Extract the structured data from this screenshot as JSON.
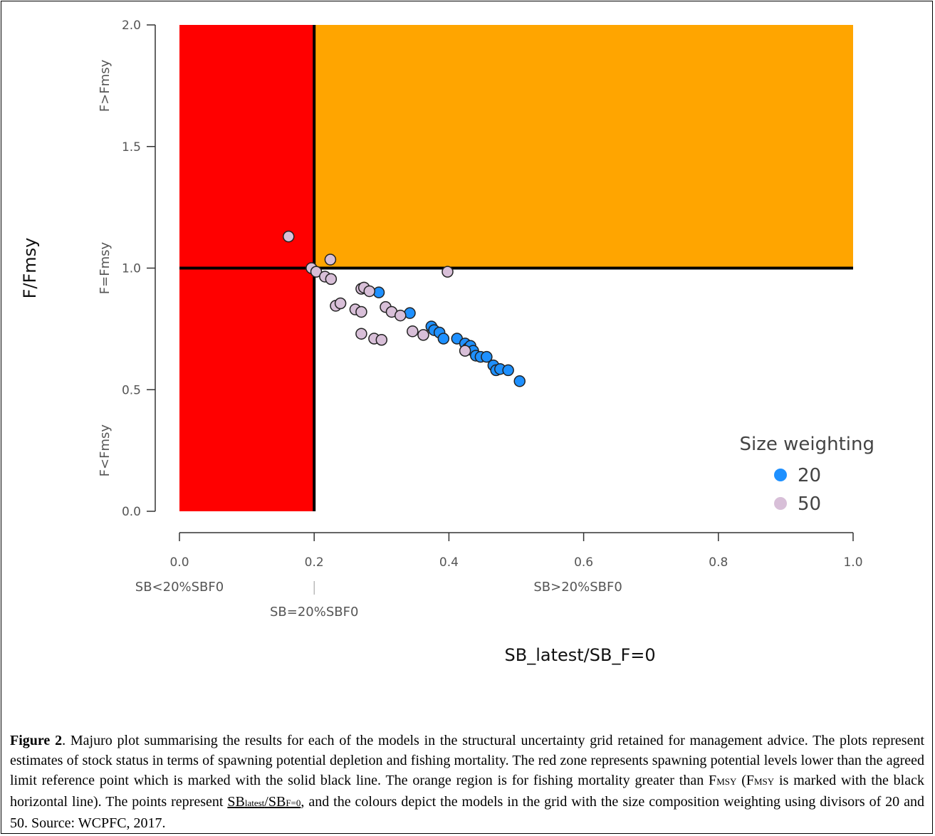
{
  "chart_data": {
    "type": "scatter",
    "xlabel": "SB_latest/SB_F=0",
    "ylabel": "F/Fmsy",
    "xlim": [
      0,
      1
    ],
    "ylim": [
      0,
      2
    ],
    "x_ticks": [
      "0.0",
      "0.2",
      "0.4",
      "0.6",
      "0.8",
      "1.0"
    ],
    "y_ticks": [
      "0.0",
      "0.5",
      "1.0",
      "1.5",
      "2.0"
    ],
    "y_zone_labels": [
      "F<Fmsy",
      "F=Fmsy",
      "F>Fmsy"
    ],
    "x_zone_labels": {
      "left": "SB<20%SBF0",
      "mid": "SB=20%SBF0",
      "right": "SB>20%SBF0"
    },
    "reference_lines": {
      "x": 0.2,
      "y": 1.0
    },
    "zones": {
      "red": "#ff0000",
      "orange": "#ffa500"
    },
    "legend": {
      "title": "Size weighting",
      "position": "right"
    },
    "series": [
      {
        "name": "20",
        "color": "#1e90ff",
        "points": [
          [
            0.296,
            0.9
          ],
          [
            0.342,
            0.815
          ],
          [
            0.374,
            0.76
          ],
          [
            0.378,
            0.745
          ],
          [
            0.386,
            0.735
          ],
          [
            0.392,
            0.71
          ],
          [
            0.412,
            0.71
          ],
          [
            0.424,
            0.69
          ],
          [
            0.428,
            0.67
          ],
          [
            0.432,
            0.68
          ],
          [
            0.436,
            0.66
          ],
          [
            0.44,
            0.64
          ],
          [
            0.447,
            0.635
          ],
          [
            0.456,
            0.635
          ],
          [
            0.466,
            0.6
          ],
          [
            0.47,
            0.58
          ],
          [
            0.476,
            0.585
          ],
          [
            0.488,
            0.58
          ],
          [
            0.505,
            0.535
          ]
        ]
      },
      {
        "name": "50",
        "color": "#d8bfd8",
        "points": [
          [
            0.162,
            1.13
          ],
          [
            0.196,
            1.0
          ],
          [
            0.203,
            0.985
          ],
          [
            0.224,
            1.035
          ],
          [
            0.216,
            0.965
          ],
          [
            0.225,
            0.955
          ],
          [
            0.232,
            0.845
          ],
          [
            0.239,
            0.855
          ],
          [
            0.261,
            0.83
          ],
          [
            0.27,
            0.82
          ],
          [
            0.27,
            0.915
          ],
          [
            0.274,
            0.92
          ],
          [
            0.282,
            0.905
          ],
          [
            0.27,
            0.73
          ],
          [
            0.289,
            0.71
          ],
          [
            0.3,
            0.705
          ],
          [
            0.306,
            0.84
          ],
          [
            0.315,
            0.82
          ],
          [
            0.328,
            0.805
          ],
          [
            0.346,
            0.74
          ],
          [
            0.362,
            0.725
          ],
          [
            0.398,
            0.985
          ],
          [
            0.424,
            0.66
          ]
        ]
      }
    ]
  },
  "caption": {
    "label": "Figure 2",
    "text_1": ". Majuro plot summarising the results for each of the models in the structural uncertainty grid retained for management advice. The plots represent estimates of stock status in terms of spawning potential depletion and fishing mortality. The red zone represents spawning potential levels lower than the agreed limit reference point which is marked with the solid black line. The orange region is for fishing mortality greater than F",
    "sub_msy_1": "MSY",
    "text_2": " (F",
    "sub_msy_2": "MSY",
    "text_3": " is marked with the black horizontal line). The points represent ",
    "sb_1": "SB",
    "sub_latest": "latest",
    "slash": "/SB",
    "sub_f0": "F=0",
    "text_4": ", and the colours depict the models in the grid with the size composition weighting using divisors of 20 and 50. Source: WCPFC, 2017."
  }
}
